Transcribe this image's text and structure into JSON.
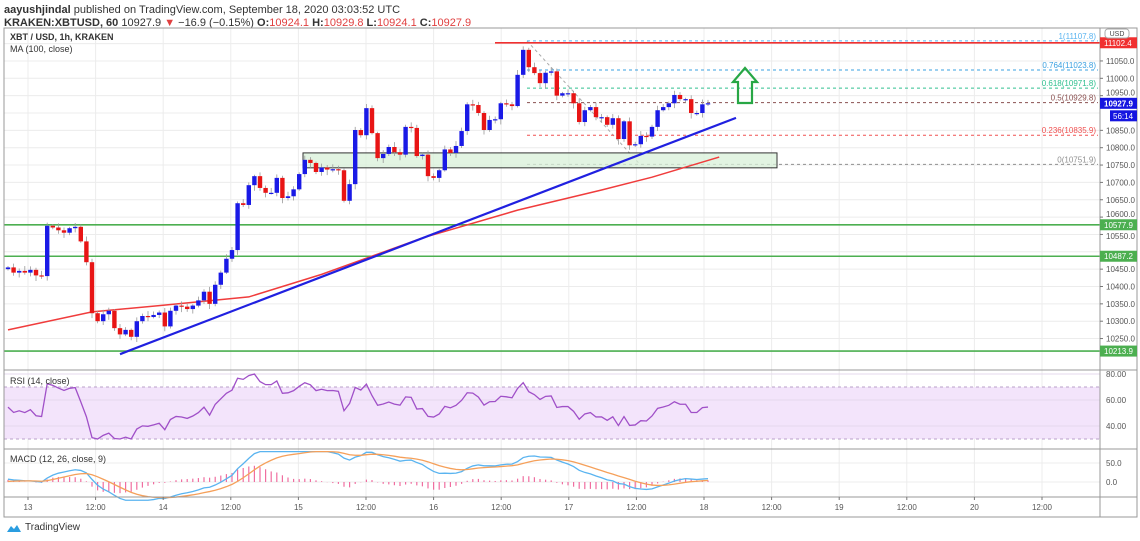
{
  "header": {
    "author": "aayushjindal",
    "published": "published on TradingView.com, September 18, 2020 03:03:52 UTC",
    "symbol": "KRAKEN:XBTUSD, 60",
    "last": "10927.9",
    "change": "−16.9 (−0.15%)",
    "o_label": "O:",
    "o": "10924.1",
    "h_label": "H:",
    "h": "10929.8",
    "l_label": "L:",
    "l": "10924.1",
    "c_label": "C:",
    "c": "10927.9"
  },
  "legend": {
    "series": "XBT / USD, 1h, KRAKEN",
    "ma": "MA (100, close)",
    "rsi": "RSI (14, close)",
    "macd": "MACD (12, 26, close, 9)"
  },
  "price_axis": {
    "currency": "USD",
    "ticks": [
      "11050.0",
      "11000.0",
      "10950.0",
      "10850.0",
      "10800.0",
      "10750.0",
      "10700.0",
      "10650.0",
      "10600.0",
      "10550.0",
      "10450.0",
      "10400.0",
      "10350.0",
      "10300.0",
      "10250.0"
    ],
    "current_price": "10927.9",
    "countdown": "56:14",
    "resistance_label": "11102.4"
  },
  "rsi_axis": {
    "ticks": [
      "80.00",
      "60.00",
      "40.00"
    ]
  },
  "macd_axis": {
    "ticks": [
      "50.0",
      "0.0"
    ]
  },
  "time_axis": {
    "ticks": [
      "13",
      "12:00",
      "14",
      "12:00",
      "15",
      "12:00",
      "16",
      "12:00",
      "17",
      "12:00",
      "18",
      "12:00",
      "19",
      "12:00",
      "20",
      "12:00"
    ]
  },
  "footer": {
    "brand": "TradingView"
  },
  "colors": {
    "up": "#1a1ae6",
    "down": "#e81515",
    "ma": "#f03c3c",
    "trendline": "#2020e0",
    "support": "#4caf50",
    "resistance": "#f03030",
    "rsi": "#a050c8",
    "macd": "#5ab4f0",
    "signal": "#f5a05a",
    "hist": "#f06ea0"
  },
  "chart_data": {
    "type": "candlestick",
    "interval": "1h",
    "first_open": 10450,
    "closes": [
      10455,
      10440,
      10445,
      10440,
      10448,
      10432,
      10430,
      10575,
      10570,
      10562,
      10555,
      10568,
      10572,
      10530,
      10470,
      10323,
      10300,
      10320,
      10330,
      10280,
      10262,
      10275,
      10255,
      10300,
      10315,
      10312,
      10318,
      10325,
      10285,
      10330,
      10345,
      10342,
      10335,
      10345,
      10360,
      10385,
      10350,
      10405,
      10440,
      10480,
      10505,
      10640,
      10635,
      10692,
      10718,
      10684,
      10670,
      10670,
      10713,
      10655,
      10660,
      10680,
      10724,
      10765,
      10756,
      10730,
      10743,
      10737,
      10738,
      10735,
      10647,
      10695,
      10851,
      10836,
      10914,
      10842,
      10770,
      10782,
      10802,
      10787,
      10780,
      10860,
      10857,
      10776,
      10780,
      10718,
      10713,
      10735,
      10795,
      10785,
      10805,
      10848,
      10925,
      10923,
      10900,
      10851,
      10880,
      10882,
      10928,
      10925,
      10920,
      11010,
      11082,
      11032,
      11015,
      10986,
      11016,
      11020,
      10950,
      10957,
      10957,
      10928,
      10874,
      10908,
      10917,
      10888,
      10888,
      10866,
      10885,
      10825,
      10876,
      10807,
      10810,
      10834,
      10832,
      10860,
      10908,
      10917,
      10928,
      10952,
      10940,
      10940,
      10900,
      10900,
      10925,
      10928
    ],
    "ma_100": [
      [
        0,
        10275
      ],
      [
        15,
        10327
      ],
      [
        27,
        10345
      ],
      [
        43,
        10370
      ],
      [
        56,
        10435
      ],
      [
        74,
        10540
      ],
      [
        91,
        10620
      ],
      [
        106,
        10678
      ],
      [
        115,
        10715
      ],
      [
        127,
        10773
      ]
    ],
    "trendline": [
      [
        20,
        10205
      ],
      [
        130,
        10886
      ]
    ],
    "support_zone": [
      10742,
      10785
    ],
    "horizontal_levels": [
      {
        "price": 10577.9,
        "label": "10577.9",
        "color": "#4caf50"
      },
      {
        "price": 10487.2,
        "label": "10487.2",
        "color": "#4caf50"
      },
      {
        "price": 10213.9,
        "label": "10213.9",
        "color": "#4caf50"
      },
      {
        "price": 11102.4,
        "color": "#f03030"
      }
    ],
    "fibonacci": [
      {
        "label": "1(11107.8)",
        "price": 11107.8,
        "color": "#5ab4f0"
      },
      {
        "label": "0.764(11023.8)",
        "price": 11023.8,
        "color": "#3aa0e0"
      },
      {
        "label": "0.618(10971.8)",
        "price": 10971.8,
        "color": "#30c090"
      },
      {
        "label": "0.5(10929.8)",
        "price": 10929.8,
        "color": "#8a5050"
      },
      {
        "label": "0.236(10835.9)",
        "price": 10835.9,
        "color": "#f05050"
      },
      {
        "label": "0(10751.9)",
        "price": 10751.9,
        "color": "#909090"
      }
    ],
    "annotation": "up-arrow",
    "ylim": [
      10200,
      11120
    ],
    "rsi_ylim": [
      30,
      80
    ],
    "macd_ylim": [
      -50,
      80
    ]
  }
}
